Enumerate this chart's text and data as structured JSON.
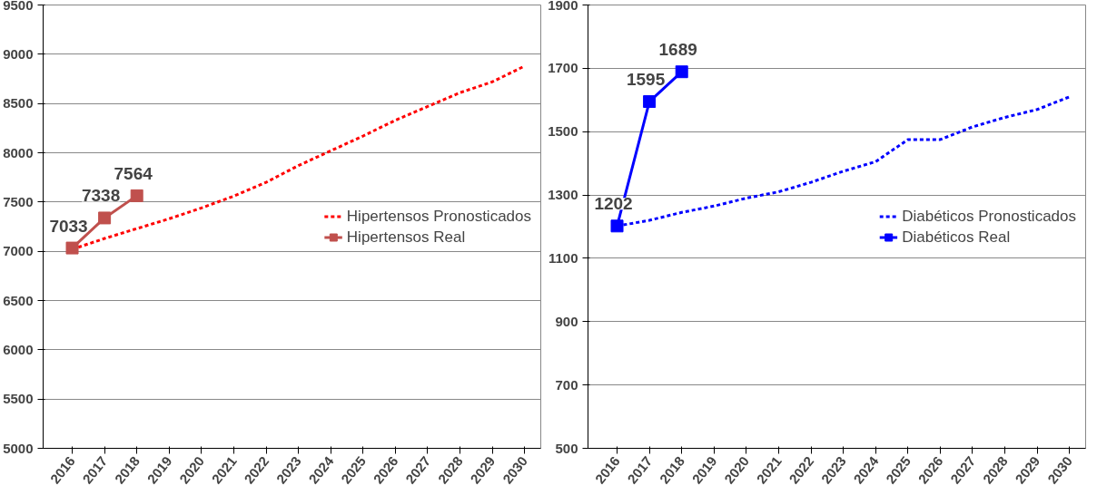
{
  "chart_data": [
    {
      "type": "line",
      "categories": [
        "2016",
        "2017",
        "2018",
        "2019",
        "2020",
        "2021",
        "2022",
        "2023",
        "2024",
        "2025",
        "2026",
        "2027",
        "2028",
        "2029",
        "2030"
      ],
      "ylim": [
        5000,
        9500
      ],
      "yticks": [
        5000,
        5500,
        6000,
        6500,
        7000,
        7500,
        8000,
        8500,
        9000,
        9500
      ],
      "grid": "y",
      "legend": "right",
      "series": [
        {
          "name": "Hipertensos Pronosticados",
          "color": "#ff0000",
          "line_style": "dashed",
          "marker": "none",
          "values": [
            7020,
            7130,
            7230,
            7330,
            7440,
            7560,
            7700,
            7870,
            8020,
            8170,
            8330,
            8470,
            8610,
            8720,
            8880
          ]
        },
        {
          "name": "Hipertensos Real",
          "color": "#c0504d",
          "line_style": "solid",
          "marker": "square",
          "values": [
            7033,
            7338,
            7564,
            null,
            null,
            null,
            null,
            null,
            null,
            null,
            null,
            null,
            null,
            null,
            null
          ],
          "value_labels": [
            "7033",
            "7338",
            "7564",
            null,
            null,
            null,
            null,
            null,
            null,
            null,
            null,
            null,
            null,
            null,
            null
          ]
        }
      ]
    },
    {
      "type": "line",
      "categories": [
        "2016",
        "2017",
        "2018",
        "2019",
        "2020",
        "2021",
        "2022",
        "2023",
        "2024",
        "2025",
        "2026",
        "2027",
        "2028",
        "2029",
        "2030"
      ],
      "ylim": [
        500,
        1900
      ],
      "yticks": [
        500,
        700,
        900,
        1100,
        1300,
        1500,
        1700,
        1900
      ],
      "grid": "y",
      "legend": "right",
      "series": [
        {
          "name": "Diabéticos Pronosticados",
          "color": "#0000ff",
          "line_style": "dashed",
          "marker": "none",
          "values": [
            1202,
            1220,
            1245,
            1265,
            1290,
            1310,
            1340,
            1375,
            1405,
            1475,
            1475,
            1515,
            1545,
            1570,
            1610
          ]
        },
        {
          "name": "Diabéticos Real",
          "color": "#0000ff",
          "line_style": "solid",
          "marker": "square",
          "values": [
            1202,
            1595,
            1689,
            null,
            null,
            null,
            null,
            null,
            null,
            null,
            null,
            null,
            null,
            null,
            null
          ],
          "value_labels": [
            "1202",
            "1595",
            "1689",
            null,
            null,
            null,
            null,
            null,
            null,
            null,
            null,
            null,
            null,
            null,
            null
          ]
        }
      ]
    }
  ]
}
